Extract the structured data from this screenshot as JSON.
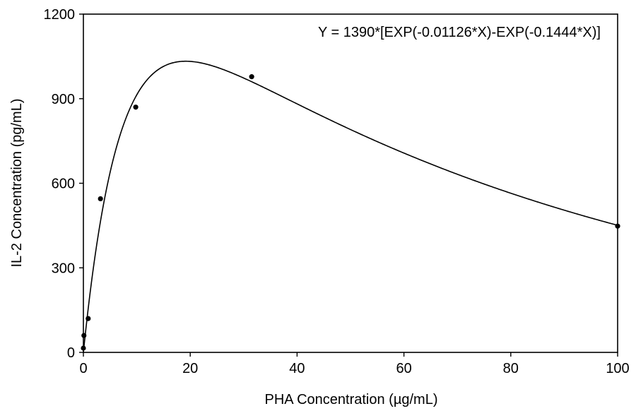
{
  "chart_data": {
    "type": "scatter",
    "xlabel": "PHA Concentration (µg/mL)",
    "ylabel": "IL-2 Concentration (pg/mL)",
    "annotation": "Y = 1390*[EXP(-0.01126*X)-EXP(-0.1444*X)]",
    "xlim": [
      0,
      100
    ],
    "ylim": [
      0,
      1200
    ],
    "x_ticks": [
      0,
      20,
      40,
      60,
      80,
      100
    ],
    "y_ticks": [
      0,
      300,
      600,
      900,
      1200
    ],
    "grid": false,
    "legend": "none",
    "series": [
      {
        "points": [
          {
            "x": 0.0,
            "y": 15
          },
          {
            "x": 0.1,
            "y": 60
          },
          {
            "x": 0.9,
            "y": 120
          },
          {
            "x": 3.2,
            "y": 545
          },
          {
            "x": 9.8,
            "y": 870
          },
          {
            "x": 31.5,
            "y": 978
          },
          {
            "x": 100,
            "y": 448
          }
        ]
      }
    ],
    "fit_curve": {
      "amplitude": 1390,
      "k1": 0.01126,
      "k2": 0.1444,
      "x_range": [
        0,
        100
      ]
    },
    "colors": {
      "line": "#000000",
      "points": "#000000",
      "axis": "#000000"
    }
  }
}
